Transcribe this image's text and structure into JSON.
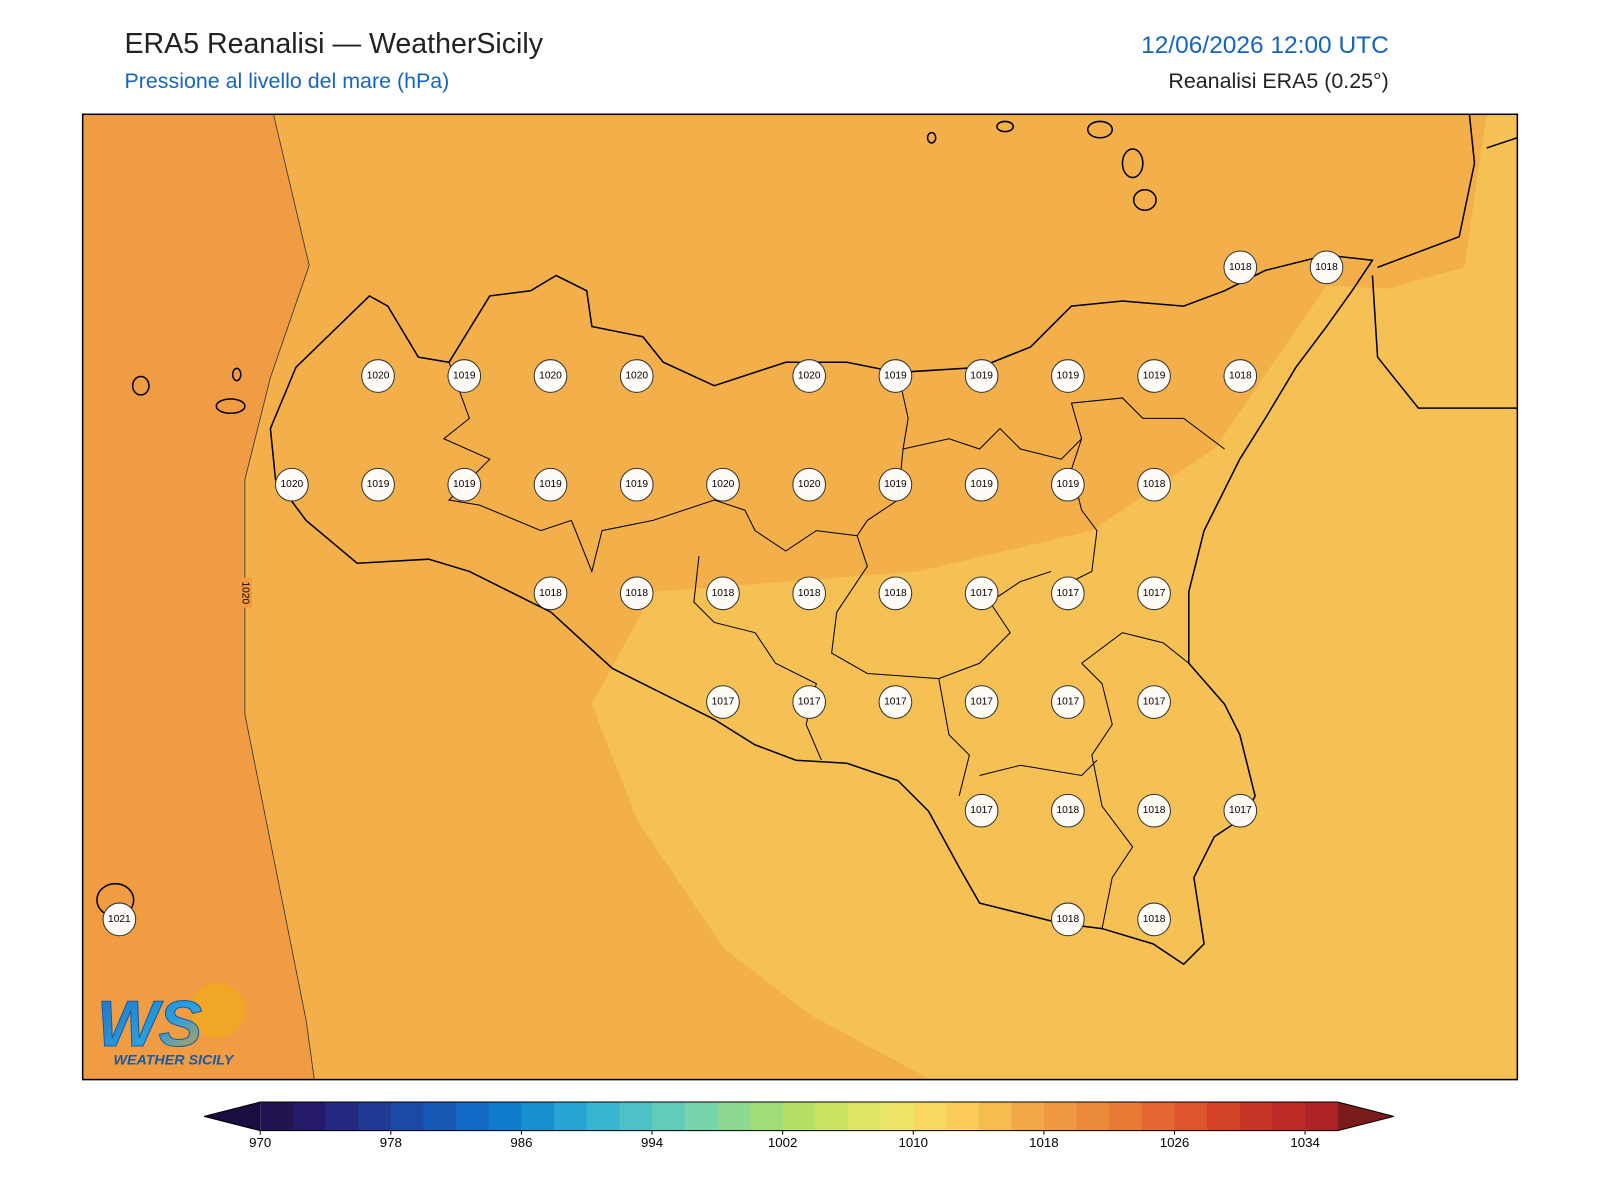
{
  "header": {
    "title": "ERA5 Reanalisi — WeatherSicily",
    "subtitle": "Pressione al livello del mare (hPa)",
    "datetime": "12/06/2026 12:00 UTC",
    "source": "Reanalisi ERA5 (0.25°)"
  },
  "map": {
    "contour_label": "1020",
    "stations": [
      "1018",
      "1018",
      "1020",
      "1019",
      "1020",
      "1020",
      "1020",
      "1019",
      "1019",
      "1019",
      "1019",
      "1018",
      "1020",
      "1019",
      "1019",
      "1019",
      "1019",
      "1020",
      "1020",
      "1019",
      "1019",
      "1019",
      "1018",
      "1018",
      "1018",
      "1018",
      "1018",
      "1018",
      "1017",
      "1017",
      "1017",
      "1017",
      "1017",
      "1017",
      "1017",
      "1017",
      "1017",
      "1017",
      "1018",
      "1018",
      "1017",
      "1021",
      "1018",
      "1018"
    ]
  },
  "colorbar": {
    "ticks": [
      "970",
      "978",
      "986",
      "994",
      "1002",
      "1010",
      "1018",
      "1026",
      "1034"
    ]
  },
  "logo": {
    "mark": "WS",
    "text": "WEATHER SICILY"
  }
}
